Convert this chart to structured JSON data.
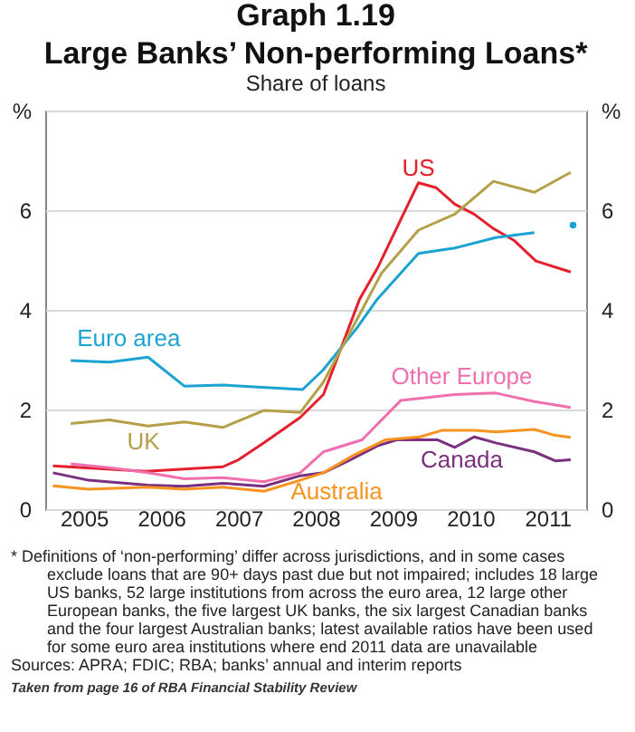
{
  "chart_data": {
    "type": "line",
    "title": "Graph 1.19",
    "subtitle": "Large Banks’ Non-performing Loans*",
    "ylabel": "Share of loans",
    "xlim": [
      2005,
      2012
    ],
    "xticks": [
      {
        "value": 2005.5,
        "label": "2005"
      },
      {
        "value": 2006.5,
        "label": "2006"
      },
      {
        "value": 2007.5,
        "label": "2007"
      },
      {
        "value": 2008.5,
        "label": "2008"
      },
      {
        "value": 2009.5,
        "label": "2009"
      },
      {
        "value": 2010.5,
        "label": "2010"
      },
      {
        "value": 2011.5,
        "label": "2011"
      }
    ],
    "ylim": [
      0,
      8
    ],
    "yticks": [
      0,
      2,
      4,
      6,
      {
        "value": 8,
        "label": "%"
      }
    ],
    "y2lim": [
      0,
      8
    ],
    "y2ticks": [
      0,
      2,
      4,
      6,
      {
        "value": 8,
        "label": "%"
      }
    ],
    "grid": "y",
    "legend": false,
    "series": [
      {
        "name": "US",
        "color": "#e3202b",
        "x": [
          2005.1,
          2006.3,
          2007.3,
          2007.5,
          2007.83,
          2008.3,
          2008.6,
          2009.07,
          2009.3,
          2009.83,
          2010.06,
          2010.3,
          2010.55,
          2010.8,
          2011.07,
          2011.35,
          2011.8
        ],
        "values": [
          0.87,
          0.76,
          0.85,
          0.99,
          1.33,
          1.84,
          2.3,
          4.22,
          4.84,
          6.55,
          6.45,
          6.12,
          5.92,
          5.63,
          5.39,
          4.98,
          4.76
        ]
      },
      {
        "name": "Euro area",
        "color": "#1ba3d1",
        "x": [
          2005.33,
          2005.83,
          2006.33,
          2006.8,
          2007.3,
          2008.33,
          2008.6,
          2009.03,
          2009.3,
          2009.83,
          2010.3,
          2010.83,
          2011.33
        ],
        "values": [
          2.98,
          2.95,
          3.05,
          2.47,
          2.49,
          2.4,
          2.8,
          3.63,
          4.22,
          5.13,
          5.24,
          5.45,
          5.55
        ]
      },
      {
        "type": "scatter",
        "color": "#1ba3d1",
        "x": [
          2011.83
        ],
        "values": [
          5.7
        ]
      },
      {
        "name": "UK",
        "color": "#b5a04a",
        "x": [
          2005.33,
          2005.83,
          2006.33,
          2006.8,
          2007.3,
          2007.83,
          2008.3,
          2008.6,
          2009.1,
          2009.35,
          2009.83,
          2010.3,
          2010.8,
          2011.33,
          2011.8
        ],
        "values": [
          1.72,
          1.79,
          1.67,
          1.75,
          1.64,
          1.98,
          1.94,
          2.55,
          4.0,
          4.73,
          5.6,
          5.92,
          6.58,
          6.36,
          6.76
        ]
      },
      {
        "name": "Other Europe",
        "color": "#f06fae",
        "x": [
          2005.33,
          2005.83,
          2006.33,
          2006.8,
          2007.3,
          2007.83,
          2008.3,
          2008.6,
          2009.1,
          2009.6,
          2010.3,
          2010.83,
          2011.33,
          2011.8
        ],
        "values": [
          0.91,
          0.83,
          0.73,
          0.61,
          0.63,
          0.55,
          0.73,
          1.15,
          1.39,
          2.18,
          2.3,
          2.33,
          2.16,
          2.04
        ]
      },
      {
        "name": "Canada",
        "color": "#7b2f7f",
        "x": [
          2005.1,
          2005.56,
          2006.33,
          2006.8,
          2007.3,
          2007.83,
          2008.3,
          2008.6,
          2008.9,
          2009.3,
          2009.55,
          2010.08,
          2010.3,
          2010.55,
          2010.83,
          2011.33,
          2011.6,
          2011.8
        ],
        "values": [
          0.73,
          0.58,
          0.48,
          0.46,
          0.52,
          0.46,
          0.67,
          0.73,
          0.95,
          1.27,
          1.39,
          1.39,
          1.24,
          1.45,
          1.33,
          1.15,
          0.97,
          0.99
        ]
      },
      {
        "name": "Australia",
        "color": "#f7931e",
        "x": [
          2005.1,
          2005.56,
          2006.33,
          2006.8,
          2007.3,
          2007.83,
          2008.3,
          2008.6,
          2009.0,
          2009.4,
          2009.85,
          2010.13,
          2010.55,
          2010.83,
          2011.33,
          2011.6,
          2011.8
        ],
        "values": [
          0.47,
          0.4,
          0.44,
          0.4,
          0.44,
          0.36,
          0.58,
          0.73,
          1.09,
          1.39,
          1.45,
          1.58,
          1.58,
          1.55,
          1.6,
          1.48,
          1.44
        ]
      }
    ],
    "annotations": [
      "* Definitions of ‘non-performing’ differ across jurisdictions, and in some cases exclude loans that are 90+ days past due but not impaired; includes 18 large US banks, 52 large institutions from across the euro area, 12 large other European banks, the five largest UK banks, the six largest Canadian banks and the four largest Australian banks; latest available ratios have been used for some euro area institutions where end 2011 data are unavailable",
      "Sources: APRA; FDIC; RBA; banks’ annual and interim reports",
      "Taken from page 16 of RBA Financial Stability Review"
    ]
  }
}
